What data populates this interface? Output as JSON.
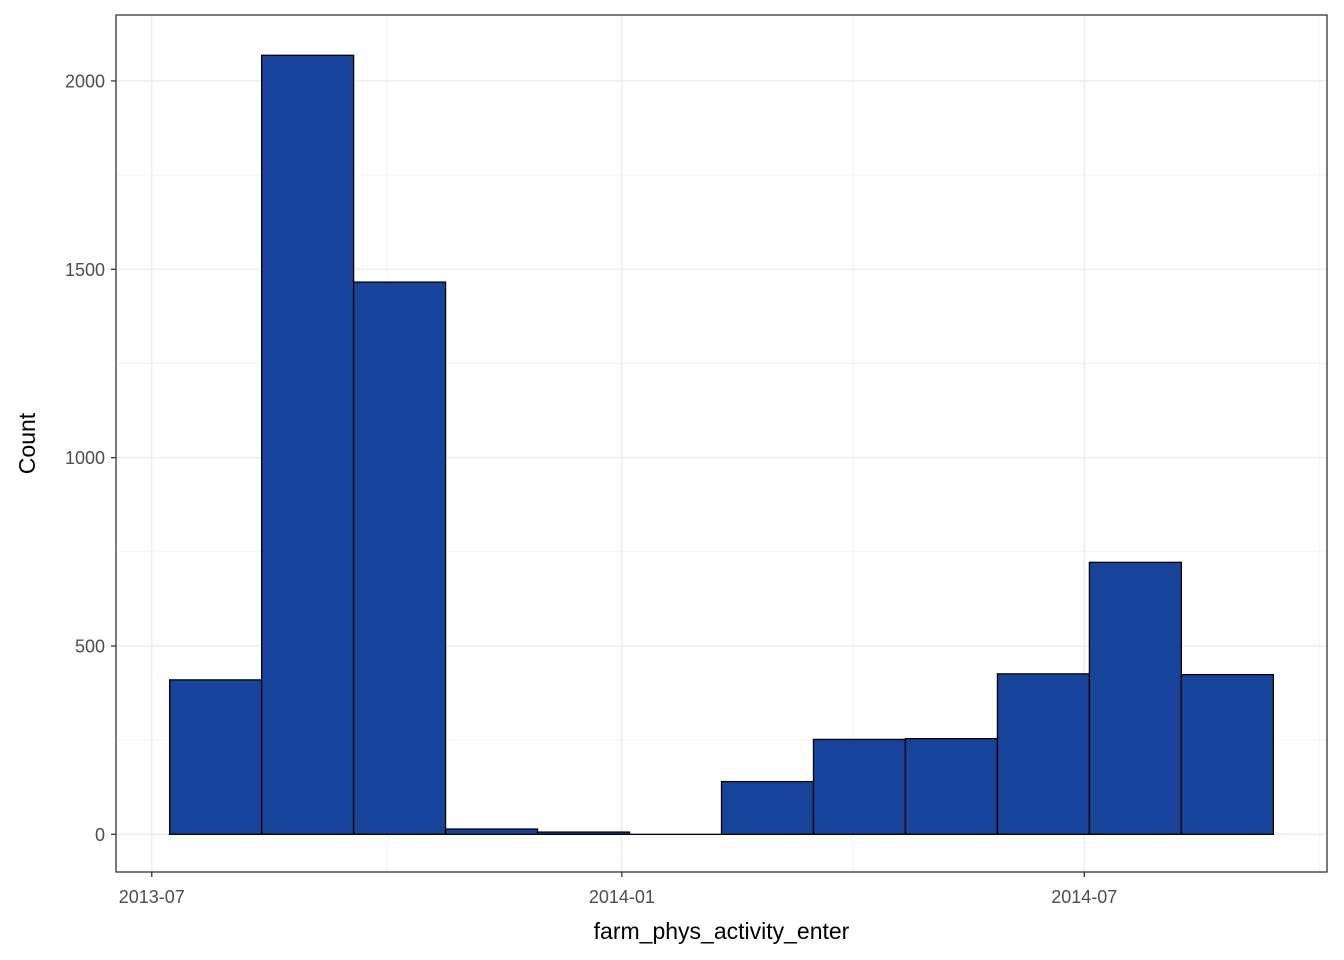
{
  "chart_data": {
    "type": "bar",
    "subtype": "histogram",
    "title": "",
    "xlabel": "farm_phys_activity_enter",
    "ylabel": "Count",
    "x_type": "date",
    "xlim": [
      "2013-06-17",
      "2014-10-04"
    ],
    "ylim": [
      -100,
      2175
    ],
    "x_ticks": [
      {
        "value": "2013-07-01",
        "label": "2013-07"
      },
      {
        "value": "2014-01-01",
        "label": "2014-01"
      },
      {
        "value": "2014-07-01",
        "label": "2014-07"
      }
    ],
    "y_ticks": [
      0,
      500,
      1000,
      1500,
      2000
    ],
    "bins": [
      {
        "start": "2013-07-08",
        "end": "2013-08-13",
        "value": 410
      },
      {
        "start": "2013-08-13",
        "end": "2013-09-18",
        "value": 2068
      },
      {
        "start": "2013-09-18",
        "end": "2013-10-24",
        "value": 1466
      },
      {
        "start": "2013-10-24",
        "end": "2013-11-29",
        "value": 14
      },
      {
        "start": "2013-11-29",
        "end": "2014-01-04",
        "value": 6
      },
      {
        "start": "2014-01-04",
        "end": "2014-02-09",
        "value": 0
      },
      {
        "start": "2014-02-09",
        "end": "2014-03-17",
        "value": 140
      },
      {
        "start": "2014-03-17",
        "end": "2014-04-22",
        "value": 252
      },
      {
        "start": "2014-04-22",
        "end": "2014-05-28",
        "value": 254
      },
      {
        "start": "2014-05-28",
        "end": "2014-07-03",
        "value": 426
      },
      {
        "start": "2014-07-03",
        "end": "2014-08-08",
        "value": 722
      },
      {
        "start": "2014-08-08",
        "end": "2014-09-13",
        "value": 424
      }
    ],
    "grid": true,
    "legend": "none",
    "colors": {
      "fill": "#17449A",
      "stroke": "#000000",
      "grid_major": "#EBEBEB",
      "grid_minor": "#F4F4F4",
      "panel_border": "#333333"
    }
  }
}
